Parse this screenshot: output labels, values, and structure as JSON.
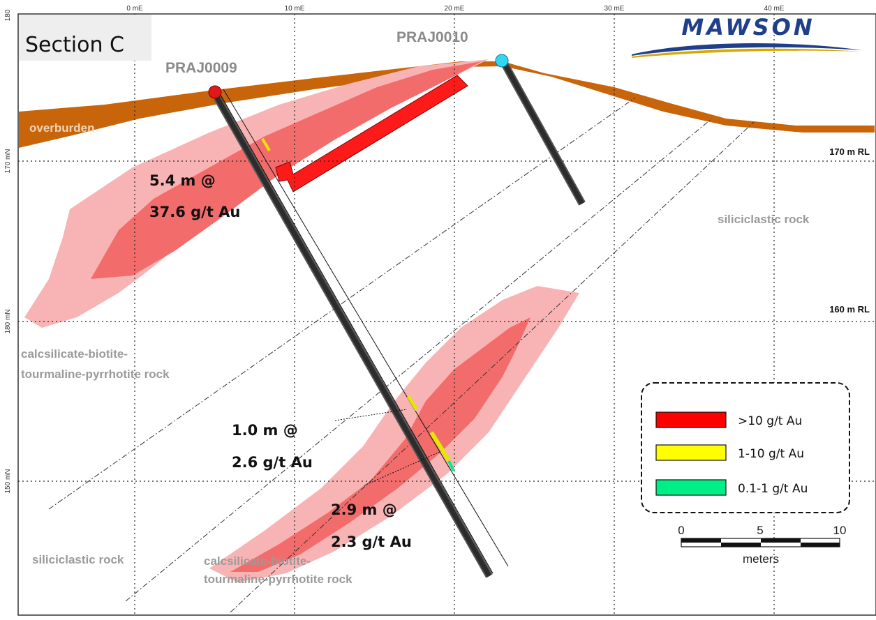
{
  "section_title": "Section C",
  "logo_text": "MAWSON",
  "top_axis_labels": [
    "0 mE",
    "10 mE",
    "20 mE",
    "30 mE",
    "40 mE"
  ],
  "left_axis_labels": [
    "180",
    "170 mN",
    "180 mN",
    "150 mN"
  ],
  "rl_labels": [
    "170 m RL",
    "160 m RL"
  ],
  "drill_holes": [
    {
      "name": "PRAJ0009",
      "collar_color": "#e01818"
    },
    {
      "name": "PRAJ0010",
      "collar_color": "#33d6f0"
    }
  ],
  "rock_labels": {
    "overburden": "overburden",
    "siliciclastic_right": "siliciclastic rock",
    "calcsilicate_left_1": "calcsilicate-biotite-",
    "calcsilicate_left_2": "tourmaline-pyrrhotite rock",
    "siliciclastic_bottom": "siliciclastic rock",
    "calcsilicate_bottom_1": "calcsilicate-biotite-",
    "calcsilicate_bottom_2": "tourmaline-pyrrhotite rock"
  },
  "intercepts": [
    {
      "line1": "5.4 m @",
      "line2": "37.6 g/t Au"
    },
    {
      "line1": "1.0 m @",
      "line2": "2.6 g/t Au"
    },
    {
      "line1": "2.9 m @",
      "line2": "2.3 g/t Au"
    }
  ],
  "legend": [
    {
      "label": ">10 g/t Au",
      "color": "#ff0000"
    },
    {
      "label": "1-10 g/t Au",
      "color": "#ffff00"
    },
    {
      "label": "0.1-1  g/t Au",
      "color": "#00ee88"
    }
  ],
  "scale_bar": {
    "ticks": [
      "0",
      "5",
      "10"
    ],
    "unit": "meters"
  },
  "colors": {
    "overburden": "#c8650a",
    "mineralised_halo": "#f48a8a",
    "mineralised_core": "#f36c6c",
    "high_grade": "#ff1a1a"
  }
}
